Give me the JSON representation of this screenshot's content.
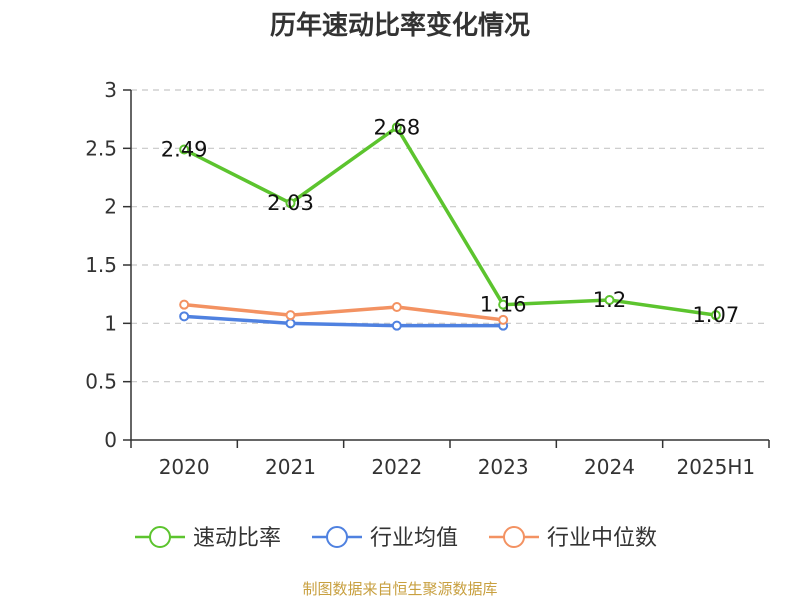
{
  "chart_data": {
    "type": "line",
    "title": "历年速动比率变化情况",
    "categories": [
      "2020",
      "2021",
      "2022",
      "2023",
      "2024",
      "2025H1"
    ],
    "ylim": [
      0,
      3
    ],
    "yticks": [
      "0",
      "0.5",
      "1",
      "1.5",
      "2",
      "2.5",
      "3"
    ],
    "grid": true,
    "legend_position": "bottom",
    "series": [
      {
        "name": "速动比率",
        "color": "#5cc42e",
        "values": [
          2.49,
          2.03,
          2.68,
          1.16,
          1.2,
          1.07
        ],
        "labels": [
          "2.49",
          "2.03",
          "2.68",
          "1.16",
          "1.2",
          "1.07"
        ]
      },
      {
        "name": "行业均值",
        "color": "#4f81e0",
        "values": [
          1.06,
          1.0,
          0.98,
          0.98,
          null,
          null
        ]
      },
      {
        "name": "行业中位数",
        "color": "#f39262",
        "values": [
          1.16,
          1.07,
          1.14,
          1.03,
          null,
          null
        ]
      }
    ],
    "source": "制图数据来自恒生聚源数据库"
  }
}
